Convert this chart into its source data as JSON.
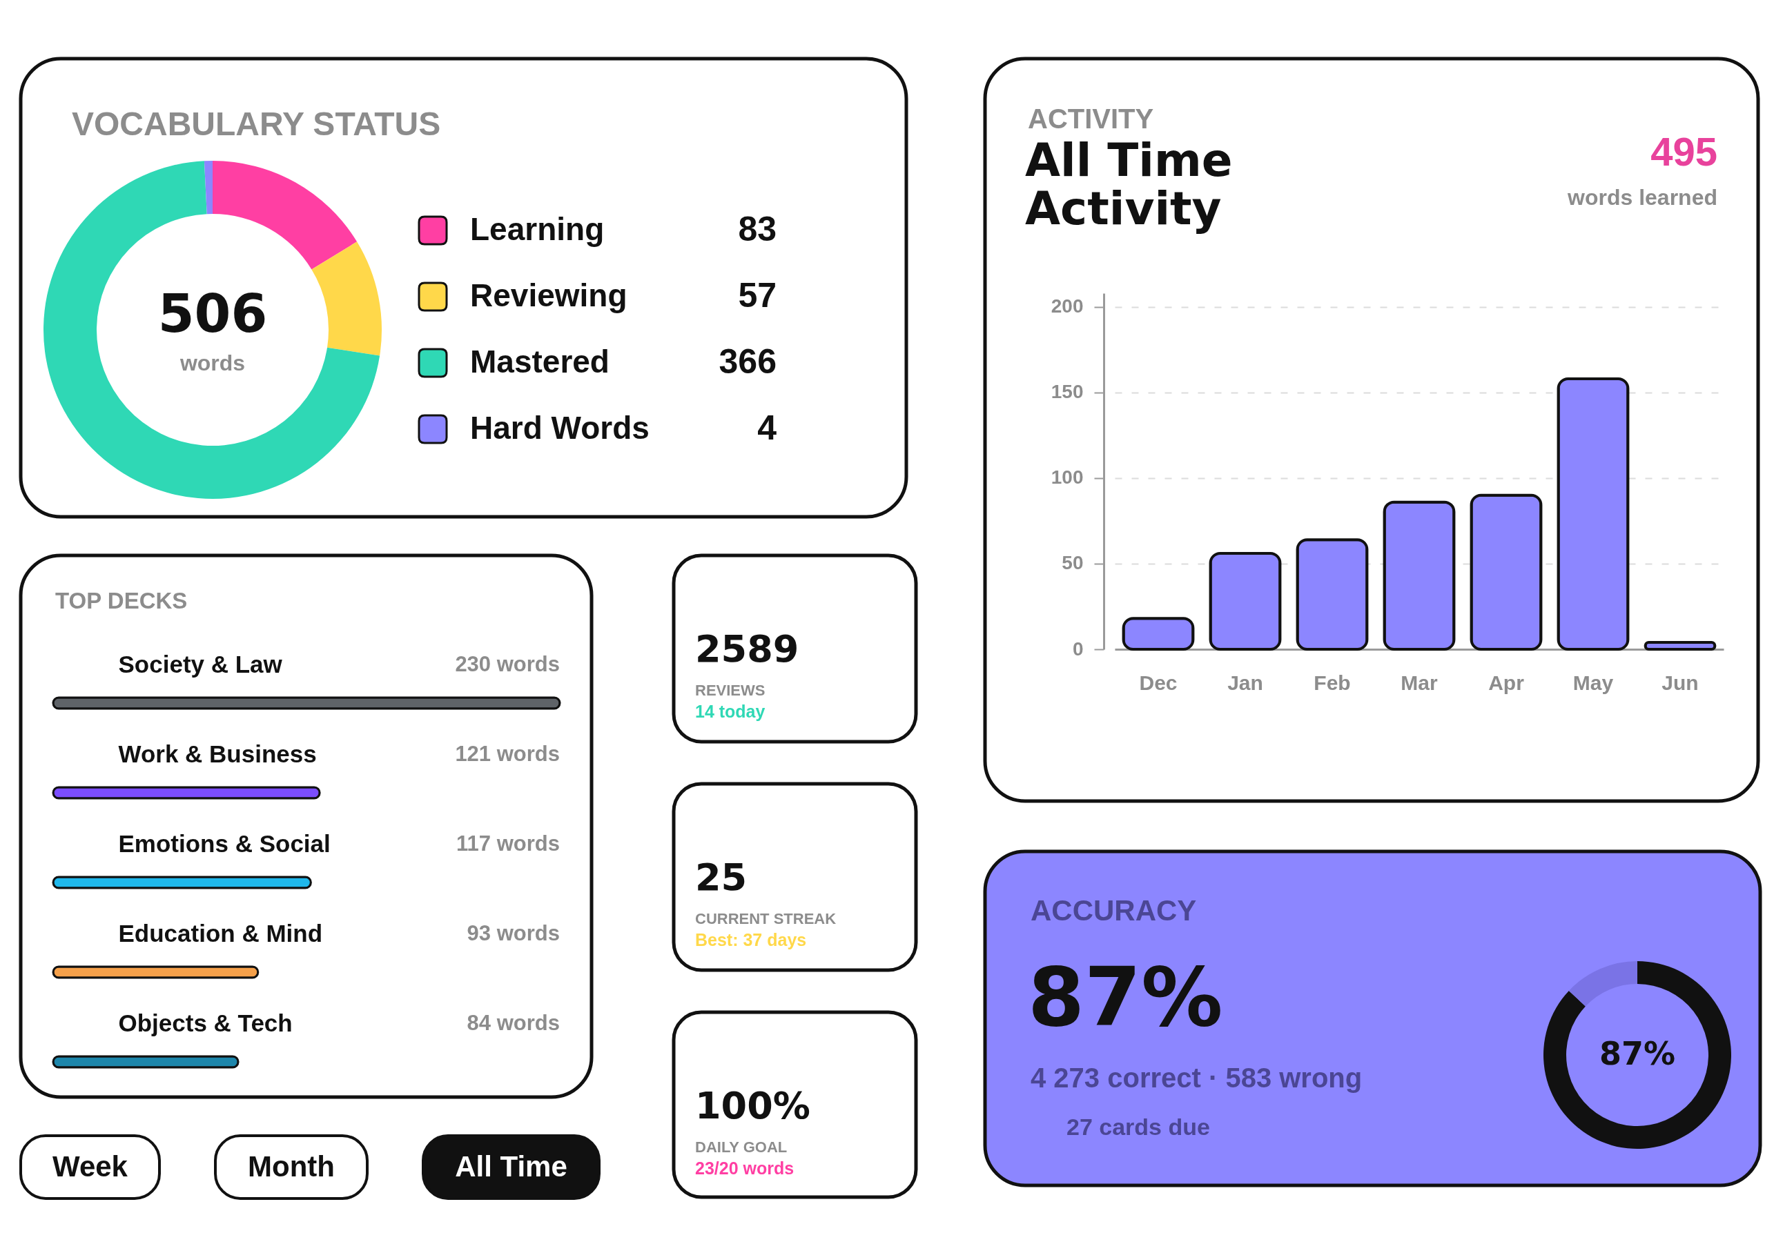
{
  "chart_data": [
    {
      "type": "donut",
      "title": "VOCABULARY STATUS",
      "categories": [
        "Learning",
        "Reviewing",
        "Mastered",
        "Hard Words"
      ],
      "values": [
        83,
        57,
        366,
        4
      ],
      "colors": [
        "#ff3fa3",
        "#ffd84a",
        "#2fd8b5",
        "#8c86ff"
      ],
      "data_labels": true,
      "legend": "right",
      "annotations": [
        "506",
        "words"
      ]
    },
    {
      "type": "bar",
      "subtitle": "ACTIVITY",
      "title": "All Time Activity",
      "categories": [
        "Dec",
        "Jan",
        "Feb",
        "Mar",
        "Apr",
        "May",
        "Jun"
      ],
      "values": [
        18,
        56,
        64,
        86,
        90,
        158,
        4
      ],
      "color": "#8c86ff",
      "ylim": [
        0,
        208
      ],
      "yticks": [
        0,
        50,
        100,
        150,
        200
      ],
      "grid": "y",
      "annotations": [
        "495",
        "words learned"
      ]
    },
    {
      "type": "bar",
      "orientation": "horizontal",
      "title": "TOP DECKS",
      "categories": [
        "Society & Law",
        "Work & Business",
        "Emotions & Social",
        "Education & Mind",
        "Objects & Tech"
      ],
      "values": [
        230,
        121,
        117,
        93,
        84
      ],
      "colors": [
        "#5f6368",
        "#7b4dff",
        "#1fb8ec",
        "#f5a04a",
        "#1d86ab"
      ],
      "value_labels": [
        "230 words",
        "121 words",
        "117 words",
        "93 words",
        "84 words"
      ]
    },
    {
      "type": "other",
      "color": "#2fd8b5",
      "annotations": [
        "2589",
        "REVIEWS",
        "14 today"
      ]
    },
    {
      "type": "other",
      "color": "#ffd84a",
      "annotations": [
        "25",
        "CURRENT STREAK",
        "Best: 37 days"
      ]
    },
    {
      "type": "other",
      "color": "#ff3fa3",
      "annotations": [
        "100%",
        "DAILY GOAL",
        "23/20 words"
      ]
    },
    {
      "type": "donut",
      "title": "ACCURACY",
      "categories": [
        null,
        null
      ],
      "values": [
        87,
        13
      ],
      "colors": [
        "#111111",
        "#7a73e6"
      ],
      "value_labels": [
        "87%",
        null
      ],
      "annotations": [
        "87%",
        "4 273 correct · 583 wrong",
        "27 cards due"
      ]
    },
    {
      "type": "other",
      "annotations": [
        "Week",
        "Month",
        "All Time"
      ]
    }
  ]
}
